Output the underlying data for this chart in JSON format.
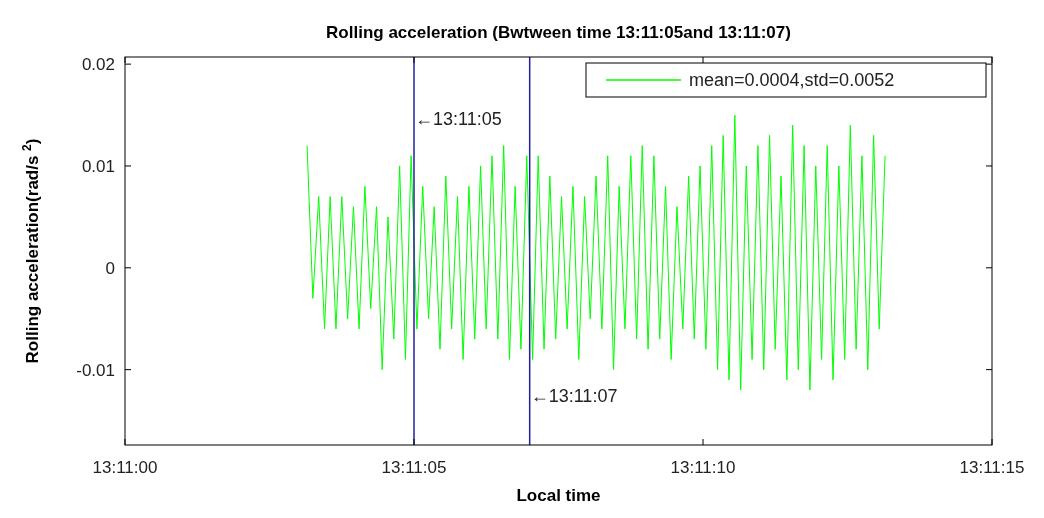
{
  "chart_data": {
    "type": "line",
    "title": "Rolling acceleration (Bwtween time 13:11:05and 13:11:07)",
    "xlabel": "Local time",
    "ylabel": "Rolling acceleration(rad/s $^{2}$)",
    "xlim": [
      13.183333,
      13.1875
    ],
    "ylim": [
      -0.0174,
      0.0207
    ],
    "xticks": [
      {
        "value": 13.183333,
        "label": "13:11:00"
      },
      {
        "value": 13.184722,
        "label": "13:11:05"
      },
      {
        "value": 13.186111,
        "label": "13:11:10"
      },
      {
        "value": 13.1875,
        "label": "13:11:15"
      }
    ],
    "yticks": [
      -0.01,
      0,
      0.01,
      0.02
    ],
    "grid": false,
    "legend": "top right",
    "ref_lines": [
      {
        "axis": "x",
        "value": 13.184722,
        "label": "←13:11:05",
        "color": "#2020a0"
      },
      {
        "axis": "x",
        "value": 13.185278,
        "label": "←13:11:07",
        "color": "#2020a0"
      }
    ],
    "series": [
      {
        "name": "mean=0.0004,std=0.0052",
        "color": "#00ff00",
        "x": [
          13.184208,
          13.184236,
          13.184264,
          13.184292,
          13.184319,
          13.184347,
          13.184375,
          13.184403,
          13.184431,
          13.184458,
          13.184486,
          13.184514,
          13.184542,
          13.184569,
          13.184597,
          13.184625,
          13.184653,
          13.184681,
          13.184708,
          13.184736,
          13.184764,
          13.184792,
          13.184819,
          13.184847,
          13.184875,
          13.184903,
          13.184931,
          13.184958,
          13.184986,
          13.185014,
          13.185042,
          13.185069,
          13.185097,
          13.185125,
          13.185153,
          13.185181,
          13.185208,
          13.185236,
          13.185264,
          13.185292,
          13.185319,
          13.185347,
          13.185375,
          13.185403,
          13.185431,
          13.185458,
          13.185486,
          13.185514,
          13.185542,
          13.185569,
          13.185597,
          13.185625,
          13.185653,
          13.185681,
          13.185708,
          13.185736,
          13.185764,
          13.185792,
          13.185819,
          13.185847,
          13.185875,
          13.185903,
          13.185931,
          13.185958,
          13.185986,
          13.186014,
          13.186042,
          13.186069,
          13.186097,
          13.186125,
          13.186153,
          13.186181,
          13.186208,
          13.186236,
          13.186264,
          13.186292,
          13.186319,
          13.186347,
          13.186375,
          13.186403,
          13.186431,
          13.186458,
          13.186486,
          13.186514,
          13.186542,
          13.186569,
          13.186597,
          13.186625,
          13.186653,
          13.186681,
          13.186708,
          13.186736,
          13.186764,
          13.186792,
          13.186819,
          13.186847,
          13.186875,
          13.186903,
          13.186931,
          13.186958,
          13.186986
        ],
        "values": [
          0.012,
          -0.003,
          0.007,
          -0.006,
          0.007,
          -0.006,
          0.007,
          -0.005,
          0.006,
          -0.006,
          0.008,
          -0.004,
          0.006,
          -0.01,
          0.005,
          -0.007,
          0.01,
          -0.009,
          0.011,
          -0.006,
          0.008,
          -0.005,
          0.006,
          -0.008,
          0.009,
          -0.006,
          0.007,
          -0.009,
          0.008,
          -0.007,
          0.01,
          -0.006,
          0.011,
          -0.007,
          0.012,
          -0.009,
          0.008,
          -0.008,
          0.011,
          -0.009,
          0.011,
          -0.008,
          0.009,
          -0.007,
          0.007,
          -0.006,
          0.008,
          -0.009,
          0.007,
          -0.005,
          0.009,
          -0.006,
          0.011,
          -0.01,
          0.008,
          -0.006,
          0.011,
          -0.007,
          0.012,
          -0.008,
          0.011,
          -0.007,
          0.008,
          -0.009,
          0.006,
          -0.006,
          0.009,
          -0.007,
          0.01,
          -0.008,
          0.012,
          -0.01,
          0.013,
          -0.011,
          0.015,
          -0.012,
          0.01,
          -0.009,
          0.012,
          -0.01,
          0.013,
          -0.008,
          0.009,
          -0.011,
          0.014,
          -0.01,
          0.012,
          -0.012,
          0.01,
          -0.009,
          0.012,
          -0.011,
          0.01,
          -0.009,
          0.014,
          -0.008,
          0.011,
          -0.01,
          0.013,
          -0.006,
          0.011
        ]
      }
    ]
  }
}
